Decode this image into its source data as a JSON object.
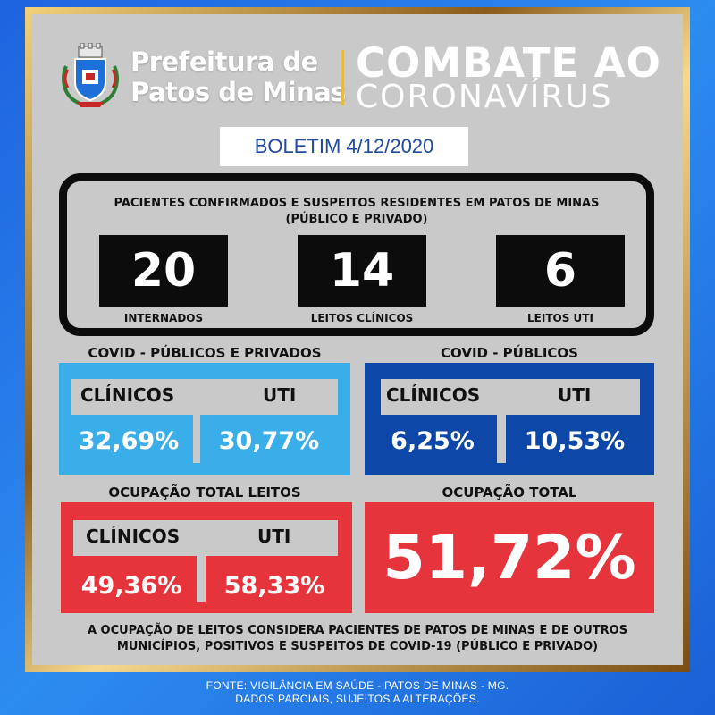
{
  "header": {
    "org_line1": "Prefeitura de",
    "org_line2": "Patos de Minas",
    "title_line1": "COMBATE AO",
    "title_line2": "CORONAVÍRUS"
  },
  "bulletin": {
    "label": "BOLETIM 4/12/2020"
  },
  "summary": {
    "title_line1": "PACIENTES CONFIRMADOS E SUSPEITOS RESIDENTES EM PATOS DE MINAS",
    "title_line2": "(PÚBLICO E PRIVADO)",
    "stats": [
      {
        "value": "20",
        "label": "INTERNADOS"
      },
      {
        "value": "14",
        "label": "LEITOS CLÍNICOS"
      },
      {
        "value": "6",
        "label": "LEITOS UTI"
      }
    ]
  },
  "covid_publicos_privados": {
    "heading": "COVID - PÚBLICOS E PRIVADOS",
    "clinicos_label": "CLÍNICOS",
    "uti_label": "UTI",
    "clinicos_value": "32,69%",
    "uti_value": "30,77%"
  },
  "covid_publicos": {
    "heading": "COVID - PÚBLICOS",
    "clinicos_label": "CLÍNICOS",
    "uti_label": "UTI",
    "clinicos_value": "6,25%",
    "uti_value": "10,53%"
  },
  "ocupacao_total_leitos": {
    "heading": "OCUPAÇÃO TOTAL LEITOS",
    "clinicos_label": "CLÍNICOS",
    "uti_label": "UTI",
    "clinicos_value": "49,36%",
    "uti_value": "58,33%"
  },
  "ocupacao_total": {
    "heading": "OCUPAÇÃO TOTAL",
    "value": "51,72%"
  },
  "note": {
    "line1": "A OCUPAÇÃO DE LEITOS CONSIDERA PACIENTES DE PATOS DE MINAS E DE OUTROS",
    "line2": "MUNICÍPIOS, POSITIVOS E SUSPEITOS DE COVID-19 (PÚBLICO E PRIVADO)"
  },
  "footer": {
    "line1": "FONTE: VIGILÂNCIA EM SAÚDE - PATOS DE MINAS - MG.",
    "line2": "DADOS PARCIAIS, SUJEITOS A ALTERAÇÕES."
  },
  "colors": {
    "background_blue": "#1e63e0",
    "panel_gray": "#c9c9c9",
    "light_blue": "#3aaee8",
    "dark_blue": "#0d47a8",
    "red": "#e5343b",
    "gold_frame": "#c9a046"
  },
  "icons": {
    "logo": "city-coat-of-arms-icon"
  }
}
